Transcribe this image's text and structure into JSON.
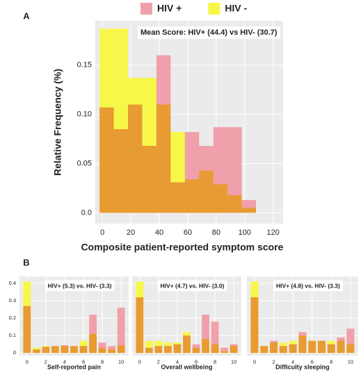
{
  "chart_data": [
    {
      "type": "histogram",
      "panel_label": "A",
      "annotation": "Mean Score: HIV+ (44.4) vs HIV- (30.7)",
      "xlabel": "Composite patient-reported symptom score",
      "ylabel": "Relative Frequency (%)",
      "bins": [
        -2,
        8,
        18,
        28,
        38,
        48,
        58,
        68,
        78,
        88,
        98,
        108
      ],
      "series": [
        {
          "name": "HIV +",
          "color": "#f0a0aa",
          "values": [
            0.107,
            0.085,
            0.11,
            0.068,
            0.16,
            0.031,
            0.082,
            0.068,
            0.087,
            0.087,
            0.013
          ]
        },
        {
          "name": "HIV -",
          "color": "#f7f74a",
          "values": [
            0.187,
            0.187,
            0.137,
            0.137,
            0.11,
            0.082,
            0.034,
            0.043,
            0.029,
            0.018,
            0.005
          ]
        }
      ],
      "xlim": [
        -5,
        127
      ],
      "xticks": [
        0,
        20,
        40,
        60,
        80,
        100,
        120
      ],
      "ylim": [
        -0.011,
        0.195
      ],
      "yticks": [
        {
          "value": 0,
          "label": "0.0"
        },
        0.05,
        {
          "value": 0.1,
          "label": "0.10"
        },
        0.15
      ],
      "grid": true,
      "legend": "top"
    },
    {
      "type": "bar",
      "panel_label": "B",
      "annotation": "HIV+ (5.3) vs. HIV- (3.3)",
      "xlabel": "Self-reported pain",
      "x": [
        0,
        1,
        2,
        3,
        4,
        5,
        6,
        7,
        8,
        9,
        10
      ],
      "series": [
        {
          "color": "#f0a0aa",
          "values": [
            0.27,
            0.02,
            0.035,
            0.04,
            0.045,
            0.04,
            0.04,
            0.22,
            0.06,
            0.04,
            0.26
          ]
        },
        {
          "color": "#f7f74a",
          "values": [
            0.41,
            0.03,
            0.04,
            0.04,
            0.04,
            0.04,
            0.07,
            0.11,
            0.03,
            0.02,
            0.045
          ]
        }
      ],
      "xlim": [
        -0.8,
        10.8
      ],
      "xticks": [
        0,
        2,
        4,
        6,
        8,
        10
      ],
      "ylim": [
        -0.015,
        0.44
      ],
      "yticks": [
        0,
        0.1,
        0.2,
        0.3,
        0.4
      ],
      "ytick_labels": true,
      "grid": true
    },
    {
      "type": "bar",
      "annotation": "HIV+ (4.7) vs. HIV- (3.0)",
      "xlabel": "Overall wellbeing",
      "x": [
        0,
        1,
        2,
        3,
        4,
        5,
        6,
        7,
        8,
        9,
        10
      ],
      "series": [
        {
          "color": "#f0a0aa",
          "values": [
            0.32,
            0.03,
            0.04,
            0.04,
            0.05,
            0.1,
            0.05,
            0.22,
            0.18,
            0.03,
            0.05
          ]
        },
        {
          "color": "#f7f74a",
          "values": [
            0.41,
            0.07,
            0.07,
            0.06,
            0.06,
            0.12,
            0.03,
            0.08,
            0.05,
            0.01,
            0.04
          ]
        }
      ],
      "xlim": [
        -0.8,
        10.8
      ],
      "xticks": [
        0,
        2,
        4,
        6,
        8,
        10
      ],
      "ylim": [
        -0.015,
        0.44
      ],
      "yticks": [
        0,
        0.1,
        0.2,
        0.3,
        0.4
      ],
      "ytick_labels": false,
      "grid": true
    },
    {
      "type": "bar",
      "annotation": "HIV+ (4.8) vs. HIV- (3.3)",
      "xlabel": "Difficulty  sleeping",
      "x": [
        0,
        1,
        2,
        3,
        4,
        5,
        6,
        7,
        8,
        9,
        10
      ],
      "series": [
        {
          "color": "#f0a0aa",
          "values": [
            0.32,
            0.04,
            0.07,
            0.04,
            0.05,
            0.12,
            0.07,
            0.07,
            0.05,
            0.09,
            0.14
          ]
        },
        {
          "color": "#f7f74a",
          "values": [
            0.41,
            0.04,
            0.06,
            0.06,
            0.07,
            0.1,
            0.07,
            0.07,
            0.07,
            0.07,
            0.05
          ]
        }
      ],
      "xlim": [
        -0.8,
        10.8
      ],
      "xticks": [
        0,
        2,
        4,
        6,
        8,
        10
      ],
      "ylim": [
        -0.015,
        0.44
      ],
      "yticks": [
        0,
        0.1,
        0.2,
        0.3,
        0.4
      ],
      "ytick_labels": false,
      "grid": true
    }
  ]
}
